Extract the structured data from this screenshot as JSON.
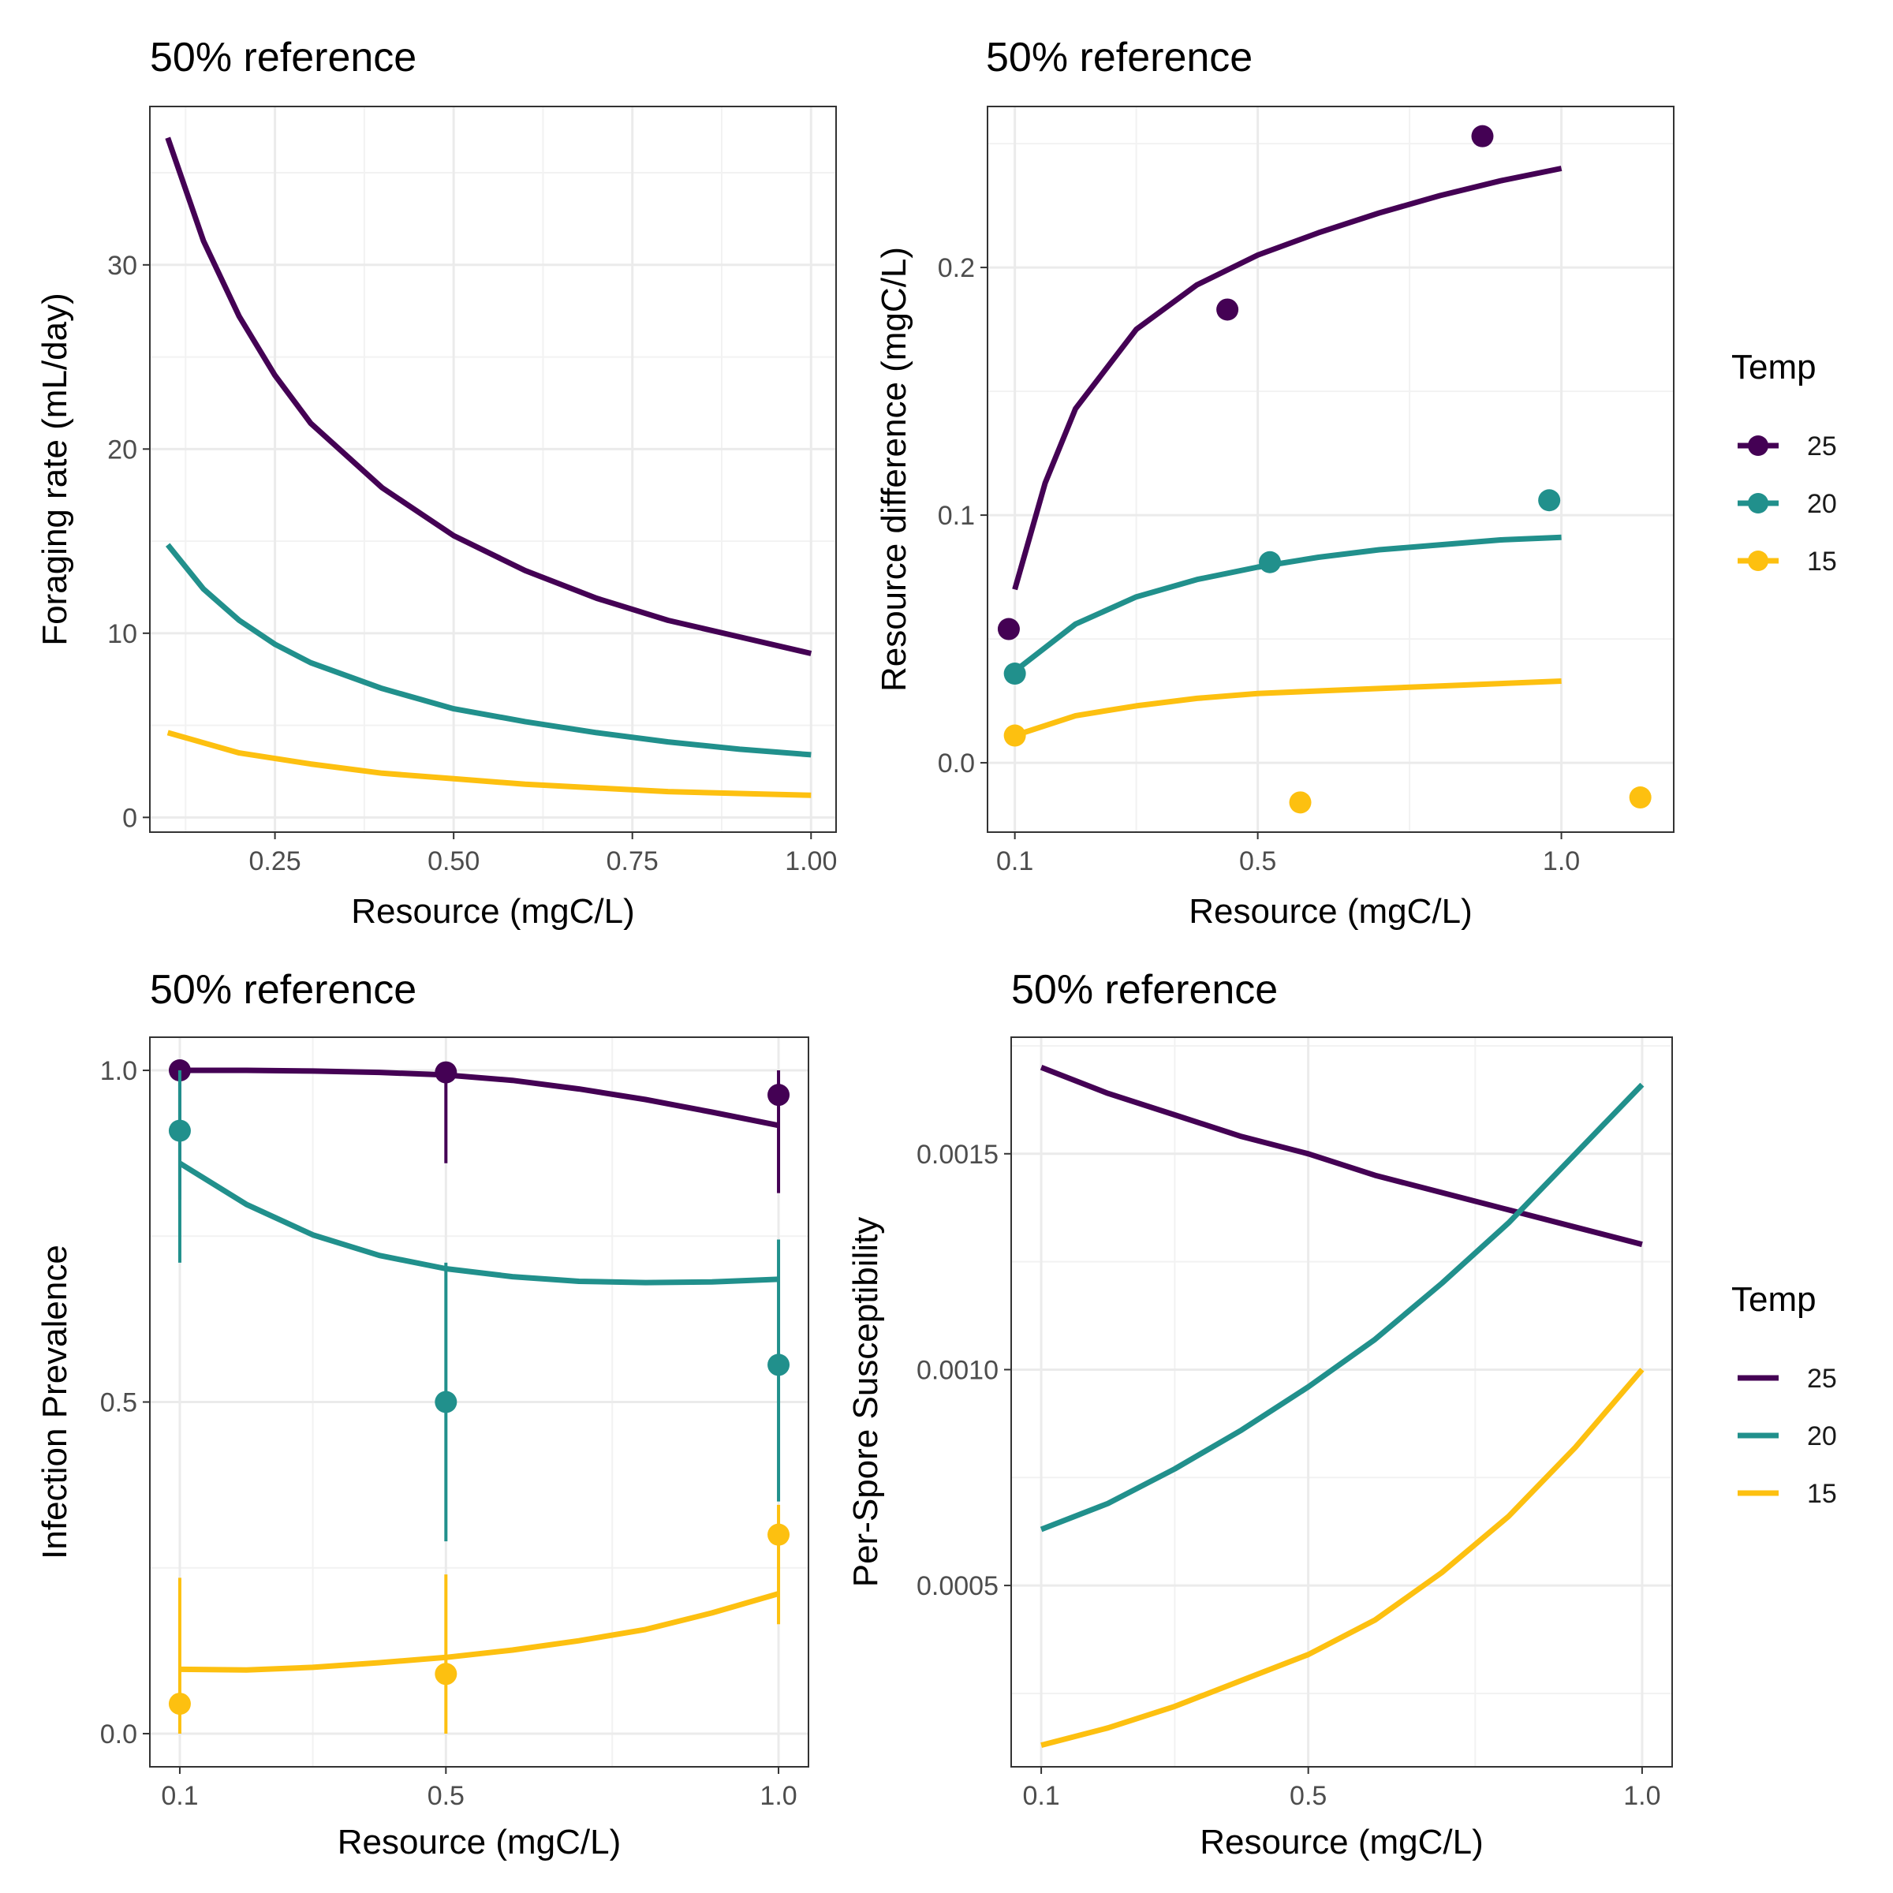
{
  "chart_data": [
    {
      "id": "foraging",
      "type": "line",
      "title": "50% reference",
      "xlabel": "Resource (mgC/L)",
      "ylabel": "Foraging rate (mL/day)",
      "xlim": [
        0.075,
        1.035
      ],
      "ylim": [
        -0.8,
        38.6
      ],
      "xticks": [
        0.25,
        0.5,
        0.75,
        1.0
      ],
      "xtick_labels": [
        "0.25",
        "0.50",
        "0.75",
        "1.00"
      ],
      "yticks": [
        0,
        10,
        20,
        30
      ],
      "ytick_labels": [
        "0",
        "10",
        "20",
        "30"
      ],
      "grid": true,
      "series": [
        {
          "name": "25",
          "color": "#440154",
          "x": [
            0.1,
            0.15,
            0.2,
            0.25,
            0.3,
            0.4,
            0.5,
            0.6,
            0.7,
            0.8,
            0.9,
            1.0
          ],
          "y": [
            36.9,
            31.3,
            27.2,
            24.0,
            21.4,
            17.9,
            15.3,
            13.4,
            11.9,
            10.7,
            9.8,
            8.9
          ]
        },
        {
          "name": "20",
          "color": "#21908C",
          "x": [
            0.1,
            0.15,
            0.2,
            0.25,
            0.3,
            0.4,
            0.5,
            0.6,
            0.7,
            0.8,
            0.9,
            1.0
          ],
          "y": [
            14.8,
            12.4,
            10.7,
            9.4,
            8.4,
            7.0,
            5.9,
            5.2,
            4.6,
            4.1,
            3.7,
            3.4
          ]
        },
        {
          "name": "15",
          "color": "#FDC010",
          "x": [
            0.1,
            0.2,
            0.3,
            0.4,
            0.5,
            0.6,
            0.7,
            0.8,
            0.9,
            1.0
          ],
          "y": [
            4.6,
            3.5,
            2.9,
            2.4,
            2.1,
            1.8,
            1.6,
            1.4,
            1.3,
            1.2
          ]
        }
      ]
    },
    {
      "id": "resource-diff",
      "type": "line",
      "title": "50% reference",
      "xlabel": "Resource (mgC/L)",
      "ylabel": "Resource difference (mgC/L)",
      "xlim": [
        0.055,
        1.185
      ],
      "ylim": [
        -0.028,
        0.265
      ],
      "xticks": [
        0.1,
        0.5,
        1.0
      ],
      "xtick_labels": [
        "0.1",
        "0.5",
        "1.0"
      ],
      "yticks": [
        0.0,
        0.1,
        0.2
      ],
      "ytick_labels": [
        "0.0",
        "0.1",
        "0.2"
      ],
      "grid": true,
      "legend": {
        "title": "Temp",
        "position": "right",
        "entries": [
          "25",
          "20",
          "15"
        ]
      },
      "series": [
        {
          "name": "25",
          "color": "#440154",
          "x": [
            0.1,
            0.15,
            0.2,
            0.3,
            0.4,
            0.5,
            0.6,
            0.7,
            0.8,
            0.9,
            1.0
          ],
          "y": [
            0.07,
            0.113,
            0.143,
            0.175,
            0.193,
            0.205,
            0.214,
            0.222,
            0.229,
            0.235,
            0.24
          ],
          "points": {
            "x": [
              0.09,
              0.45,
              0.87
            ],
            "y": [
              0.054,
              0.183,
              0.253
            ]
          }
        },
        {
          "name": "20",
          "color": "#21908C",
          "x": [
            0.1,
            0.2,
            0.3,
            0.4,
            0.5,
            0.6,
            0.7,
            0.8,
            0.9,
            1.0
          ],
          "y": [
            0.037,
            0.056,
            0.067,
            0.074,
            0.079,
            0.083,
            0.086,
            0.088,
            0.09,
            0.091
          ],
          "points": {
            "x": [
              0.1,
              0.52,
              0.98
            ],
            "y": [
              0.036,
              0.081,
              0.106
            ]
          }
        },
        {
          "name": "15",
          "color": "#FDC010",
          "x": [
            0.1,
            0.2,
            0.3,
            0.4,
            0.5,
            0.6,
            0.7,
            0.8,
            0.9,
            1.0
          ],
          "y": [
            0.011,
            0.019,
            0.023,
            0.026,
            0.028,
            0.029,
            0.03,
            0.031,
            0.032,
            0.033
          ],
          "points": {
            "x": [
              0.1,
              0.57,
              1.13
            ],
            "y": [
              0.011,
              -0.016,
              -0.014
            ]
          }
        }
      ]
    },
    {
      "id": "prevalence",
      "type": "line",
      "title": "50% reference",
      "xlabel": "Resource (mgC/L)",
      "ylabel": "Infection Prevalence",
      "xlim": [
        0.055,
        1.045
      ],
      "ylim": [
        -0.05,
        1.05
      ],
      "xticks": [
        0.1,
        0.5,
        1.0
      ],
      "xtick_labels": [
        "0.1",
        "0.5",
        "1.0"
      ],
      "yticks": [
        0.0,
        0.5,
        1.0
      ],
      "ytick_labels": [
        "0.0",
        "0.5",
        "1.0"
      ],
      "grid": true,
      "series": [
        {
          "name": "25",
          "color": "#440154",
          "x": [
            0.1,
            0.2,
            0.3,
            0.4,
            0.5,
            0.6,
            0.7,
            0.8,
            0.9,
            1.0
          ],
          "y": [
            1.0,
            1.0,
            0.999,
            0.997,
            0.993,
            0.985,
            0.972,
            0.956,
            0.937,
            0.917
          ],
          "points": {
            "x": [
              0.1,
              0.5,
              1.0
            ],
            "y": [
              1.0,
              0.997,
              0.963
            ],
            "err_low": [
              0.805,
              0.86,
              0.815
            ],
            "err_high": [
              1.0,
              1.0,
              1.0
            ]
          }
        },
        {
          "name": "20",
          "color": "#21908C",
          "x": [
            0.1,
            0.2,
            0.3,
            0.4,
            0.5,
            0.6,
            0.7,
            0.8,
            0.9,
            1.0
          ],
          "y": [
            0.86,
            0.798,
            0.752,
            0.721,
            0.701,
            0.689,
            0.682,
            0.68,
            0.681,
            0.685
          ],
          "points": {
            "x": [
              0.1,
              0.5,
              1.0
            ],
            "y": [
              0.909,
              0.5,
              0.556
            ],
            "err_low": [
              0.71,
              0.29,
              0.35
            ],
            "err_high": [
              1.0,
              0.71,
              0.745
            ]
          }
        },
        {
          "name": "15",
          "color": "#FDC010",
          "x": [
            0.1,
            0.2,
            0.3,
            0.4,
            0.5,
            0.6,
            0.7,
            0.8,
            0.9,
            1.0
          ],
          "y": [
            0.097,
            0.096,
            0.1,
            0.107,
            0.115,
            0.126,
            0.14,
            0.157,
            0.182,
            0.211
          ],
          "points": {
            "x": [
              0.1,
              0.5,
              1.0
            ],
            "y": [
              0.045,
              0.09,
              0.3
            ],
            "err_low": [
              0.0,
              0.0,
              0.165
            ],
            "err_high": [
              0.235,
              0.24,
              0.345
            ]
          }
        }
      ]
    },
    {
      "id": "susceptibility",
      "type": "line",
      "title": "50% reference",
      "xlabel": "Resource (mgC/L)",
      "ylabel": "Per-Spore Susceptibility",
      "xlim": [
        0.055,
        1.045
      ],
      "ylim": [
        8e-05,
        0.00177
      ],
      "xticks": [
        0.1,
        0.5,
        1.0
      ],
      "xtick_labels": [
        "0.1",
        "0.5",
        "1.0"
      ],
      "yticks": [
        0.0005,
        0.001,
        0.0015
      ],
      "ytick_labels": [
        "0.0005",
        "0.0010",
        "0.0015"
      ],
      "grid": true,
      "legend": {
        "title": "Temp",
        "position": "right",
        "entries": [
          "25",
          "20",
          "15"
        ]
      },
      "series": [
        {
          "name": "25",
          "color": "#440154",
          "x": [
            0.1,
            0.2,
            0.3,
            0.4,
            0.5,
            0.6,
            0.7,
            0.8,
            0.9,
            1.0
          ],
          "y": [
            0.0017,
            0.00164,
            0.00159,
            0.00154,
            0.0015,
            0.00145,
            0.00141,
            0.00137,
            0.00133,
            0.00129
          ]
        },
        {
          "name": "20",
          "color": "#21908C",
          "x": [
            0.1,
            0.2,
            0.3,
            0.4,
            0.5,
            0.6,
            0.7,
            0.8,
            0.9,
            1.0
          ],
          "y": [
            0.00063,
            0.00069,
            0.00077,
            0.00086,
            0.00096,
            0.00107,
            0.0012,
            0.00134,
            0.0015,
            0.00166
          ]
        },
        {
          "name": "15",
          "color": "#FDC010",
          "x": [
            0.1,
            0.2,
            0.3,
            0.4,
            0.5,
            0.6,
            0.7,
            0.8,
            0.9,
            1.0
          ],
          "y": [
            0.00013,
            0.00017,
            0.00022,
            0.00028,
            0.00034,
            0.00042,
            0.00053,
            0.00066,
            0.00082,
            0.001
          ]
        }
      ]
    }
  ]
}
